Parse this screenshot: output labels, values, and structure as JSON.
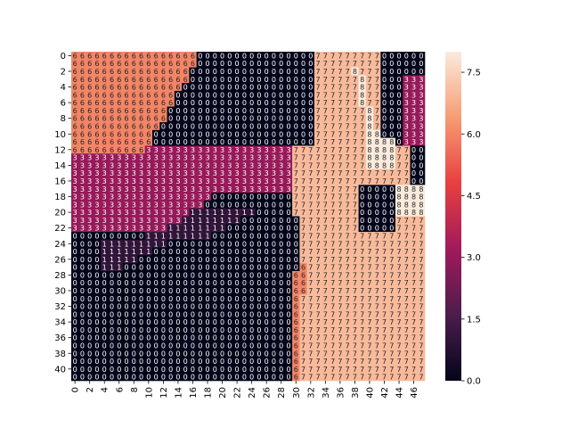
{
  "chart_data": {
    "type": "heatmap",
    "title": "",
    "xlabel": "",
    "ylabel": "",
    "rows": 42,
    "cols": 48,
    "x_tick_labels": [
      "0",
      "2",
      "4",
      "6",
      "8",
      "10",
      "12",
      "14",
      "16",
      "18",
      "20",
      "22",
      "24",
      "26",
      "28",
      "30",
      "32",
      "34",
      "36",
      "38",
      "40",
      "42",
      "44",
      "46"
    ],
    "y_tick_labels": [
      "0",
      "2",
      "4",
      "6",
      "8",
      "10",
      "12",
      "14",
      "16",
      "18",
      "20",
      "22",
      "24",
      "26",
      "28",
      "30",
      "32",
      "34",
      "36",
      "38",
      "40"
    ],
    "annotations": true,
    "value_range": [
      0,
      8
    ],
    "colorbar": {
      "ticks": [
        0.0,
        1.5,
        3.0,
        4.5,
        6.0,
        7.5
      ],
      "tick_labels": [
        "0.0",
        "1.5",
        "3.0",
        "4.5",
        "6.0",
        "7.5"
      ]
    },
    "colormap": "rocket",
    "colormap_stops": [
      "#03051a",
      "#4c1d4b",
      "#a11a5b",
      "#e83f3f",
      "#f69c73",
      "#faebdd"
    ],
    "grid": "rows"
  }
}
